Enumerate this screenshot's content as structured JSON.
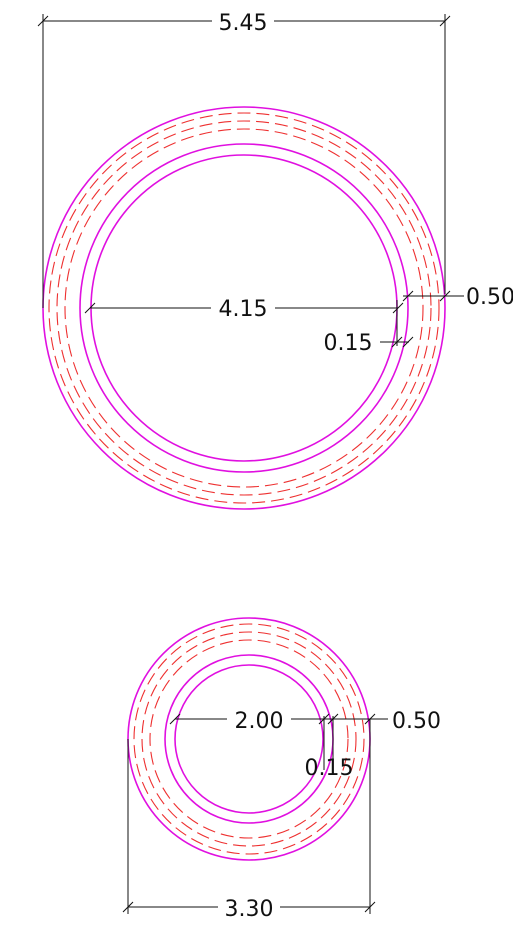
{
  "colors": {
    "solid_ring": "#e010e0",
    "dashed_ring": "#ee3030",
    "dimension": "#111111"
  },
  "pipe_large": {
    "outer_diameter_label": "5.45",
    "inner_diameter_label": "4.15",
    "lining_thickness_label": "0.15",
    "insulation_thickness_label": "0.50"
  },
  "pipe_small": {
    "outer_diameter_label": "3.30",
    "inner_diameter_label": "2.00",
    "lining_thickness_label": "0.15",
    "insulation_thickness_label": "0.50"
  }
}
